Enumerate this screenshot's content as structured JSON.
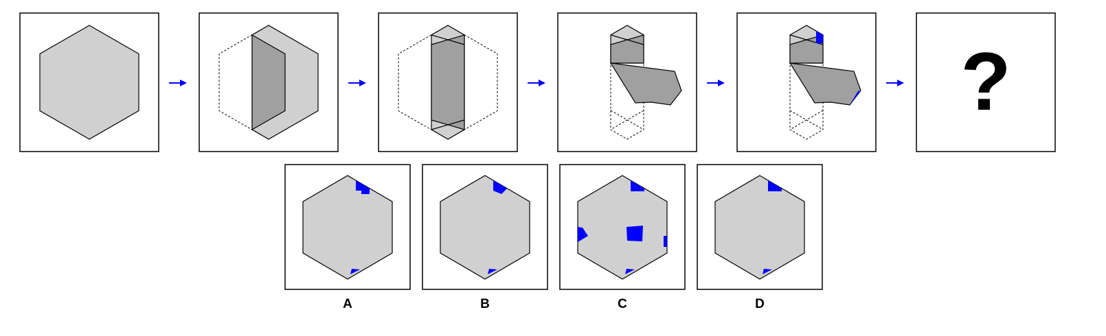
{
  "sequence": {
    "question_symbol": "?"
  },
  "options": [
    {
      "label": "A"
    },
    {
      "label": "B"
    },
    {
      "label": "C"
    },
    {
      "label": "D"
    }
  ],
  "colors": {
    "paper": "#d0d0d0",
    "folded_paper": "#a0a0a0",
    "marker": "#0000ff",
    "arrow": "#0000ff"
  },
  "icons": [
    "right-arrow-icon",
    "question-mark-icon"
  ]
}
